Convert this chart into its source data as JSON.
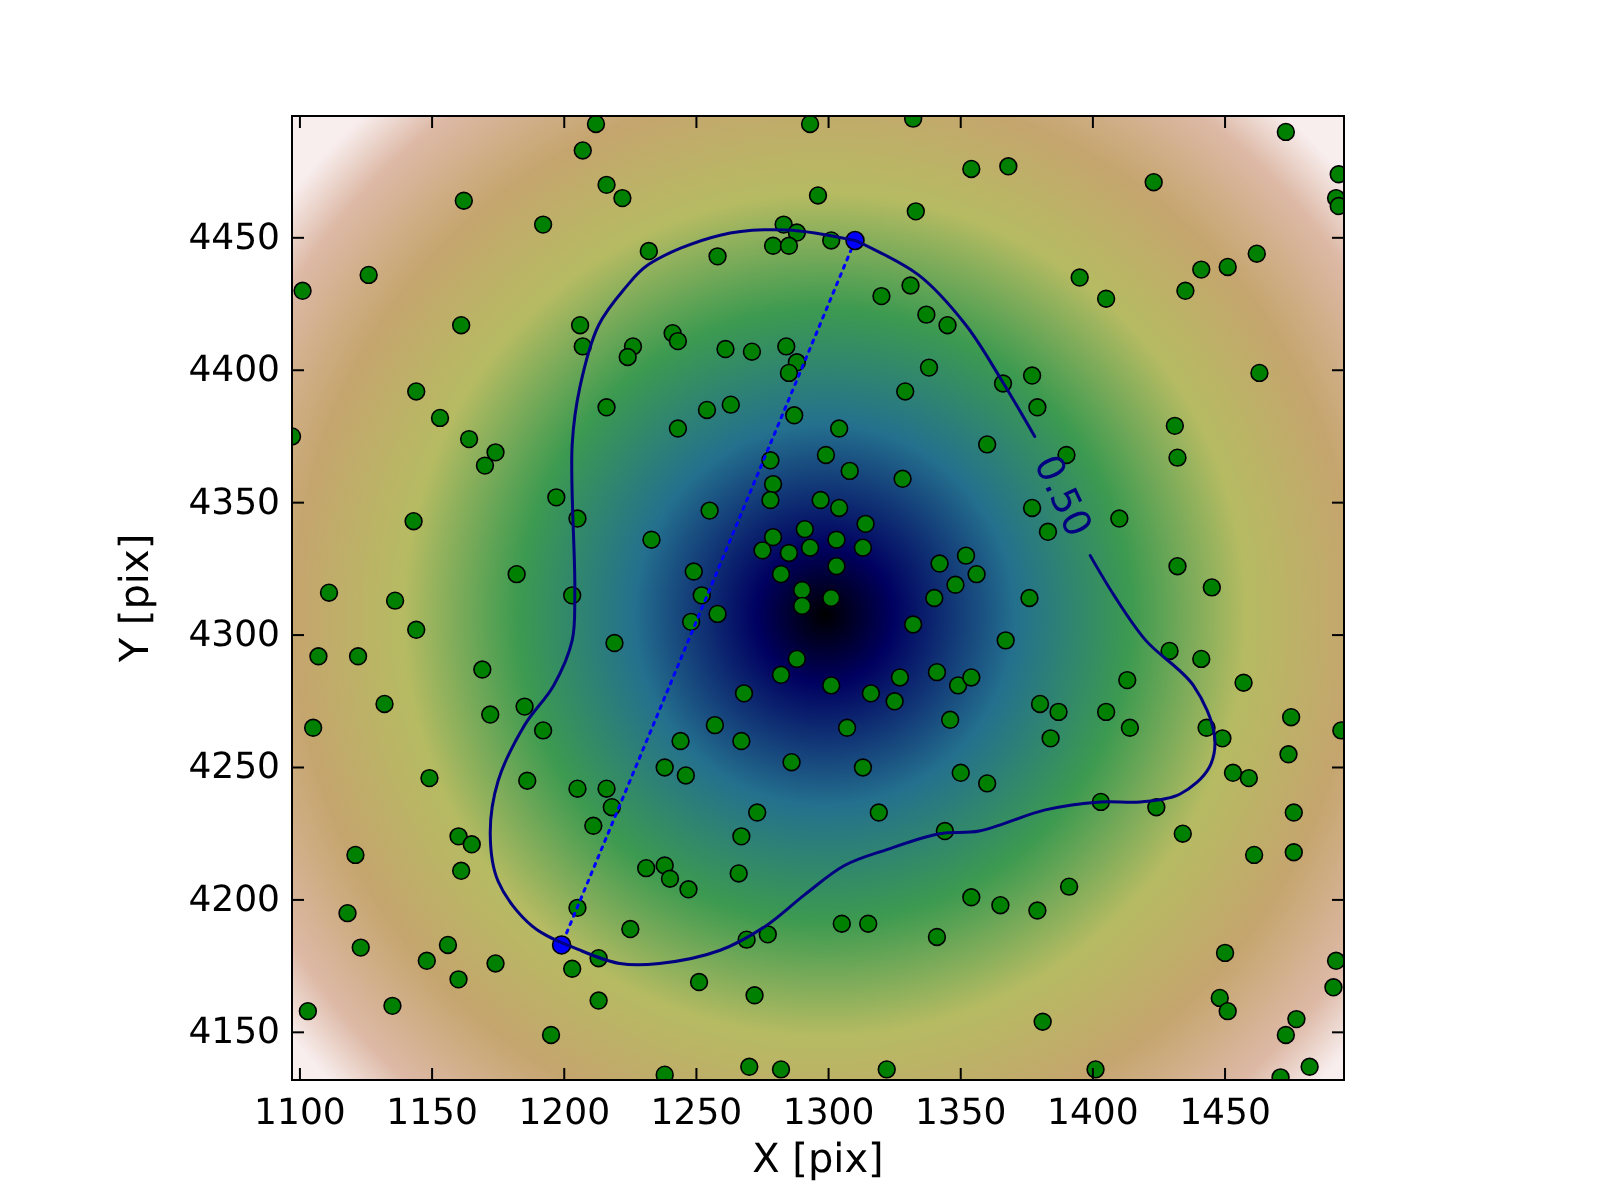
{
  "chart_data": {
    "type": "scatter",
    "xlabel": "X [pix]",
    "ylabel": "Y [pix]",
    "xlim": [
      1097,
      1495
    ],
    "ylim": [
      4132,
      4496
    ],
    "xticks": [
      1100,
      1150,
      1200,
      1250,
      1300,
      1350,
      1400,
      1450
    ],
    "yticks": [
      4150,
      4200,
      4250,
      4300,
      4350,
      4400,
      4450
    ],
    "marker": "circle",
    "series": [
      {
        "color": "#008000",
        "x": [
          1212,
          1207,
          1216,
          1162,
          1192,
          1126,
          1101,
          1161,
          1206,
          1207,
          1144,
          1216,
          1153,
          1097,
          1164,
          1174,
          1170,
          1197,
          1205,
          1143,
          1182,
          1293,
          1332,
          1354,
          1222,
          1296,
          1333,
          1283,
          1288,
          1232,
          1258,
          1279,
          1285,
          1301,
          1320,
          1331,
          1337,
          1345,
          1241,
          1243,
          1226,
          1224,
          1261,
          1271,
          1284,
          1288,
          1285,
          1338,
          1329,
          1254,
          1263,
          1287,
          1243,
          1304,
          1299,
          1278,
          1308,
          1279,
          1328,
          1278,
          1297,
          1304,
          1255,
          1314,
          1291,
          1233,
          1279,
          1303,
          1275,
          1285,
          1293,
          1313,
          1342,
          1352,
          1249,
          1282,
          1303,
          1356,
          1473,
          1368,
          1423,
          1493,
          1492,
          1493,
          1462,
          1451,
          1441,
          1395,
          1405,
          1435,
          1366,
          1377,
          1463,
          1379,
          1431,
          1360,
          1390,
          1432,
          1377,
          1383,
          1410,
          1432,
          1111,
          1136,
          1203,
          1144,
          1107,
          1122,
          1219,
          1169,
          1132,
          1185,
          1172,
          1192,
          1105,
          1149,
          1186,
          1205,
          1216,
          1218,
          1211,
          1160,
          1165,
          1121,
          1161,
          1118,
          1205,
          1123,
          1156,
          1148,
          1174,
          1213,
          1203,
          1160,
          1213,
          1135,
          1103,
          1195,
          1348,
          1252,
          1290,
          1301,
          1340,
          1290,
          1258,
          1248,
          1332,
          1288,
          1282,
          1301,
          1316,
          1327,
          1341,
          1349,
          1354,
          1268,
          1325,
          1257,
          1307,
          1346,
          1244,
          1267,
          1238,
          1246,
          1286,
          1313,
          1350,
          1273,
          1319,
          1267,
          1344,
          1231,
          1238,
          1240,
          1247,
          1266,
          1354,
          1225,
          1269,
          1277,
          1305,
          1315,
          1341,
          1251,
          1272,
          1238,
          1270,
          1282,
          1322,
          1376,
          1445,
          1367,
          1429,
          1441,
          1457,
          1413,
          1380,
          1387,
          1405,
          1384,
          1414,
          1443,
          1449,
          1475,
          1494,
          1474,
          1453,
          1459,
          1360,
          1403,
          1424,
          1476,
          1434,
          1461,
          1476,
          1391,
          1365,
          1379,
          1450,
          1492,
          1491,
          1448,
          1451,
          1477,
          1473,
          1381,
          1482,
          1401,
          1471
        ],
        "values": [
          4493,
          4483,
          4470,
          4464,
          4455,
          4436,
          4430,
          4417,
          4417,
          4409,
          4392,
          4386,
          4382,
          4375,
          4374,
          4369,
          4364,
          4352,
          4344,
          4343,
          4323,
          4493,
          4495,
          4476,
          4465,
          4466,
          4460,
          4455,
          4452,
          4445,
          4443,
          4447,
          4447,
          4449,
          4428,
          4432,
          4421,
          4417,
          4414,
          4411,
          4409,
          4405,
          4408,
          4407,
          4409,
          4403,
          4399,
          4401,
          4392,
          4385,
          4387,
          4383,
          4378,
          4378,
          4368,
          4366,
          4362,
          4357,
          4359,
          4351,
          4351,
          4348,
          4347,
          4342,
          4340,
          4336,
          4337,
          4336,
          4332,
          4331,
          4333,
          4333,
          4327,
          4330,
          4324,
          4323,
          4326,
          4323,
          4490,
          4477,
          4471,
          4474,
          4465,
          4462,
          4444,
          4439,
          4438,
          4435,
          4427,
          4430,
          4395,
          4398,
          4399,
          4386,
          4379,
          4372,
          4368,
          4367,
          4348,
          4339,
          4344,
          4326,
          4316,
          4313,
          4315,
          4302,
          4292,
          4292,
          4297,
          4287,
          4274,
          4273,
          4270,
          4264,
          4265,
          4246,
          4245,
          4242,
          4242,
          4235,
          4228,
          4224,
          4221,
          4217,
          4211,
          4195,
          4197,
          4182,
          4183,
          4177,
          4176,
          4178,
          4174,
          4170,
          4162,
          4160,
          4158,
          4149,
          4319,
          4315,
          4317,
          4314,
          4314,
          4311,
          4308,
          4305,
          4304,
          4291,
          4285,
          4281,
          4278,
          4284,
          4286,
          4281,
          4284,
          4278,
          4275,
          4266,
          4265,
          4268,
          4260,
          4260,
          4250,
          4247,
          4252,
          4250,
          4248,
          4233,
          4233,
          4224,
          4226,
          4212,
          4213,
          4208,
          4204,
          4210,
          4201,
          4189,
          4185,
          4187,
          4191,
          4191,
          4186,
          4169,
          4164,
          4134,
          4137,
          4136,
          4136,
          4314,
          4318,
          4298,
          4294,
          4291,
          4282,
          4283,
          4274,
          4271,
          4271,
          4261,
          4265,
          4265,
          4261,
          4269,
          4264,
          4255,
          4248,
          4246,
          4244,
          4237,
          4235,
          4233,
          4225,
          4217,
          4218,
          4205,
          4198,
          4196,
          4180,
          4177,
          4167,
          4163,
          4158,
          4155,
          4149,
          4154,
          4137,
          4136,
          4133
        ]
      },
      {
        "type": "line",
        "color": "#0000ff",
        "line_style": "dotted",
        "marker": "circle",
        "x": [
          1310,
          1199
        ],
        "values": [
          4449,
          4183
        ]
      },
      {
        "type": "line",
        "name": "0.50",
        "color": "#000080",
        "line_style": "solid",
        "marker": "none",
        "x": [
          1310,
          1334,
          1352,
          1365,
          1378,
          null,
          1399,
          1408,
          1420,
          1438,
          1446,
          1444,
          1433,
          1418,
          1403,
          1382,
          1357,
          1342,
          1322,
          1306,
          1291,
          1276,
          1259,
          1236,
          1221,
          1206,
          1188,
          1175,
          1172,
          1175,
          1185,
          1196,
          1203,
          1204,
          1203,
          1206,
          1213,
          1223,
          1232,
          1259,
          1284,
          1310
        ],
        "values": [
          4449,
          4436,
          4417,
          4397,
          4375,
          null,
          4330,
          4315,
          4298,
          4281,
          4262,
          4250,
          4240,
          4237,
          4237,
          4234,
          4226,
          4225,
          4219,
          4213,
          4202,
          4190,
          4181,
          4176,
          4176,
          4181,
          4190,
          4207,
          4225,
          4245,
          4266,
          4281,
          4298,
          4316,
          4372,
          4394,
          4417,
          4431,
          4440,
          4451,
          4453,
          4449
        ]
      }
    ]
  }
}
